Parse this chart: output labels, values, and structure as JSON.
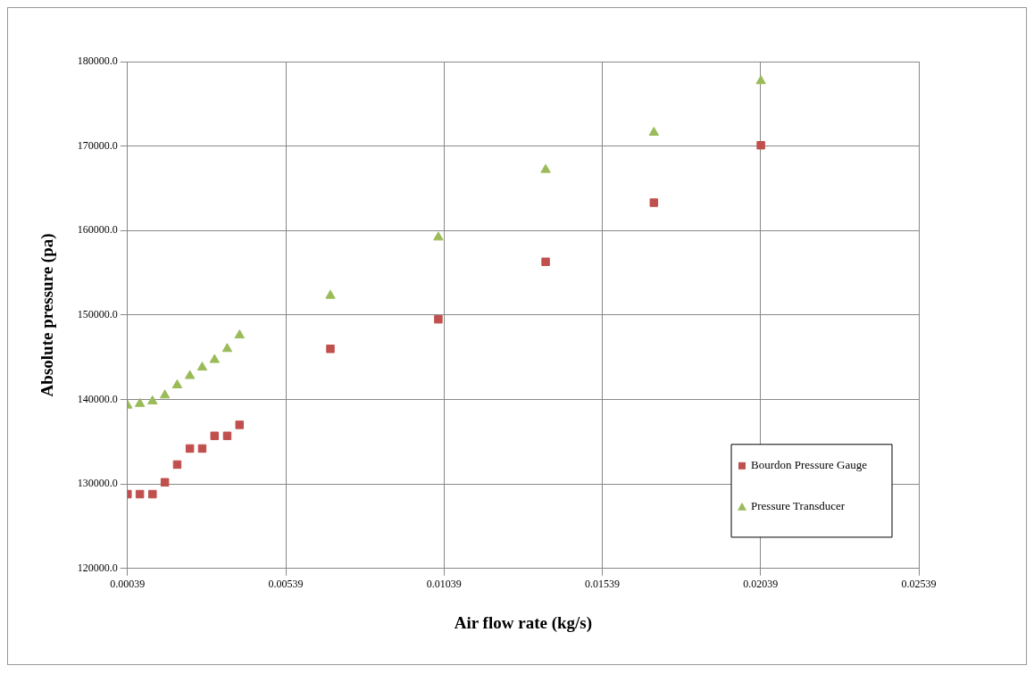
{
  "chart_data": {
    "type": "scatter",
    "xlabel": "Air flow rate (kg/s)",
    "ylabel": "Absolute pressure (pa)",
    "xlim": [
      0.00039,
      0.02539
    ],
    "xticks": [
      0.00039,
      0.00539,
      0.01039,
      0.01539,
      0.02039,
      0.02539
    ],
    "ylim": [
      120000,
      180000
    ],
    "yticks": [
      {
        "value": 120000,
        "label": "120000.0"
      },
      {
        "value": 130000,
        "label": "130000.0"
      },
      {
        "value": 140000,
        "label": "140000.0"
      },
      {
        "value": 150000,
        "label": "150000.0"
      },
      {
        "value": 160000,
        "label": "160000.0"
      },
      {
        "value": 170000,
        "label": "170000.0"
      },
      {
        "value": 180000,
        "label": "180000.0"
      }
    ],
    "grid": true,
    "legend": "bottom right",
    "series": [
      {
        "name": "Bourdon Pressure Gauge",
        "color": "#c0504d",
        "marker": "square",
        "x": [
          0.00039,
          0.00078,
          0.00118,
          0.00157,
          0.00196,
          0.00236,
          0.00275,
          0.00314,
          0.00354,
          0.00393,
          0.0068,
          0.01021,
          0.0136,
          0.01702,
          0.0204
        ],
        "values": [
          128800,
          128800,
          128800,
          130200,
          132300,
          134200,
          134200,
          135700,
          135700,
          137000,
          146000,
          149500,
          156300,
          163300,
          170100
        ]
      },
      {
        "name": "Pressure Transducer",
        "color": "#9bbb59",
        "marker": "triangle",
        "x": [
          0.00039,
          0.00078,
          0.00118,
          0.00157,
          0.00196,
          0.00236,
          0.00275,
          0.00314,
          0.00354,
          0.00393,
          0.0068,
          0.01021,
          0.0136,
          0.01702,
          0.0204
        ],
        "values": [
          139300,
          139500,
          139800,
          140500,
          141700,
          142800,
          143800,
          144700,
          146000,
          147600,
          152300,
          159200,
          167200,
          171600,
          177700
        ]
      }
    ]
  }
}
